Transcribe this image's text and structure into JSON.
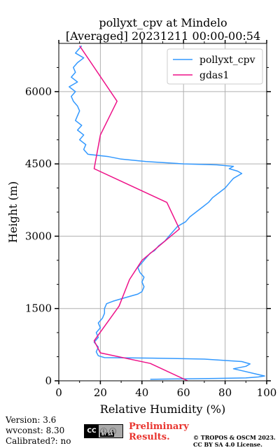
{
  "title_line1": "pollyxt_cpv at Mindelo",
  "title_line2": "[Averaged] 20231211 00:00-00:54",
  "footer": {
    "version": "Version: 3.6",
    "wvconst": "wvconst:   8.30",
    "calibrated": "Calibrated?: no",
    "preliminary_line1": "Preliminary",
    "preliminary_line2": "Results.",
    "copyright_line1": "© TROPOS & OSCM 2023.",
    "copyright_line2": "CC BY SA 4.0 License.",
    "cc_badge": "CC",
    "cc_badge_icons": "ⓘ ⓢ",
    "cc_badge_sub": "BY  SA"
  },
  "chart_data": {
    "type": "line",
    "xlabel": "Relative Humidity (%)",
    "ylabel": "Height (m)",
    "xlim": [
      0,
      100
    ],
    "ylim": [
      0,
      7000
    ],
    "xticks": [
      0,
      20,
      40,
      60,
      80,
      100
    ],
    "yticks": [
      0,
      1500,
      3000,
      4500,
      6000
    ],
    "grid": true,
    "legend_position": "top-right",
    "series": [
      {
        "name": "pollyxt_cpv",
        "color": "#3399ff",
        "points": [
          [
            44,
            30
          ],
          [
            60,
            40
          ],
          [
            75,
            50
          ],
          [
            90,
            60
          ],
          [
            96,
            80
          ],
          [
            99,
            100
          ],
          [
            95,
            140
          ],
          [
            89,
            200
          ],
          [
            84,
            250
          ],
          [
            90,
            300
          ],
          [
            92,
            350
          ],
          [
            88,
            400
          ],
          [
            70,
            450
          ],
          [
            45,
            470
          ],
          [
            22,
            480
          ],
          [
            19,
            520
          ],
          [
            18,
            600
          ],
          [
            19,
            700
          ],
          [
            17,
            800
          ],
          [
            19,
            900
          ],
          [
            18,
            1000
          ],
          [
            20,
            1100
          ],
          [
            19,
            1200
          ],
          [
            21,
            1300
          ],
          [
            22,
            1400
          ],
          [
            22,
            1500
          ],
          [
            23,
            1600
          ],
          [
            26,
            1650
          ],
          [
            30,
            1700
          ],
          [
            34,
            1750
          ],
          [
            38,
            1800
          ],
          [
            40,
            1850
          ],
          [
            41,
            1950
          ],
          [
            40,
            2050
          ],
          [
            41,
            2150
          ],
          [
            39,
            2250
          ],
          [
            38,
            2350
          ],
          [
            40,
            2450
          ],
          [
            42,
            2550
          ],
          [
            44,
            2650
          ],
          [
            46,
            2700
          ],
          [
            48,
            2800
          ],
          [
            51,
            2900
          ],
          [
            53,
            3000
          ],
          [
            55,
            3100
          ],
          [
            57,
            3200
          ],
          [
            59,
            3250
          ],
          [
            61,
            3300
          ],
          [
            63,
            3400
          ],
          [
            66,
            3500
          ],
          [
            69,
            3600
          ],
          [
            72,
            3700
          ],
          [
            74,
            3800
          ],
          [
            77,
            3900
          ],
          [
            80,
            4000
          ],
          [
            82,
            4100
          ],
          [
            84,
            4200
          ],
          [
            88,
            4300
          ],
          [
            86,
            4350
          ],
          [
            82,
            4400
          ],
          [
            84,
            4450
          ],
          [
            76,
            4480
          ],
          [
            60,
            4500
          ],
          [
            42,
            4550
          ],
          [
            30,
            4600
          ],
          [
            24,
            4650
          ],
          [
            14,
            4700
          ],
          [
            12,
            4800
          ],
          [
            13,
            4900
          ],
          [
            10,
            5000
          ],
          [
            12,
            5100
          ],
          [
            9,
            5200
          ],
          [
            11,
            5300
          ],
          [
            8,
            5400
          ],
          [
            9,
            5500
          ],
          [
            10,
            5600
          ],
          [
            9,
            5700
          ],
          [
            7,
            5800
          ],
          [
            6,
            5900
          ],
          [
            8,
            6000
          ],
          [
            5,
            6100
          ],
          [
            9,
            6200
          ],
          [
            6,
            6300
          ],
          [
            8,
            6400
          ],
          [
            7,
            6500
          ],
          [
            9,
            6600
          ],
          [
            12,
            6700
          ],
          [
            8,
            6800
          ],
          [
            10,
            6900
          ],
          [
            11,
            6950
          ]
        ]
      },
      {
        "name": "gdas1",
        "color": "#ee1188",
        "points": [
          [
            62,
            0
          ],
          [
            44,
            360
          ],
          [
            20,
            580
          ],
          [
            17,
            830
          ],
          [
            29,
            1550
          ],
          [
            34,
            2100
          ],
          [
            40,
            2500
          ],
          [
            58,
            3150
          ],
          [
            52,
            3700
          ],
          [
            17,
            4400
          ],
          [
            20,
            5100
          ],
          [
            28,
            5800
          ],
          [
            10,
            6950
          ]
        ]
      }
    ]
  }
}
